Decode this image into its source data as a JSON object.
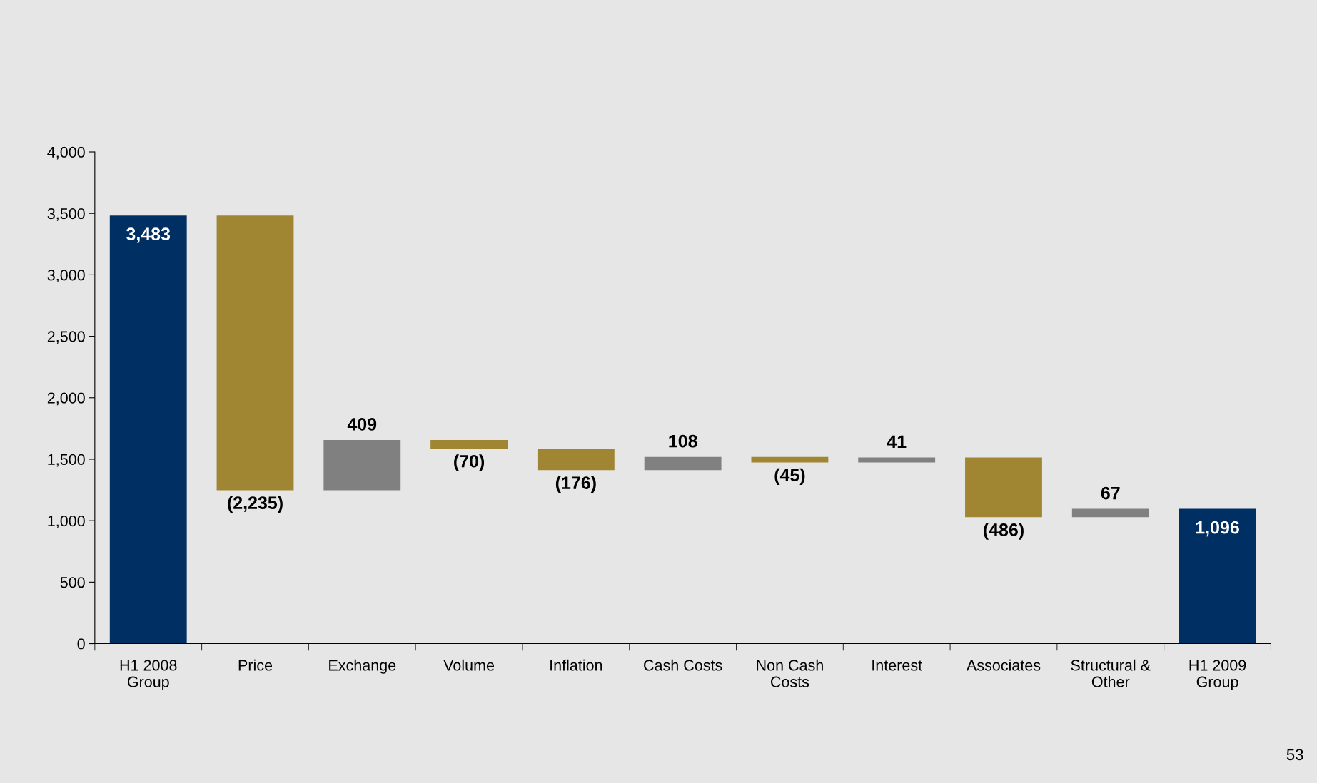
{
  "chart_data": {
    "type": "bar",
    "categories": [
      "H1 2008\nGroup",
      "Price",
      "Exchange",
      "Volume",
      "Inflation",
      "Cash Costs",
      "Non Cash\nCosts",
      "Interest",
      "Associates",
      "Structural &\nOther",
      "H1 2009\nGroup"
    ],
    "values": [
      3483,
      -2235,
      409,
      -70,
      -176,
      108,
      -45,
      41,
      -486,
      67,
      1096
    ],
    "base": [
      0,
      3483,
      1248,
      1657,
      1587,
      1411,
      1519,
      1474,
      1515,
      1029,
      0
    ],
    "colors": [
      "#003063",
      "#a08533",
      "#808080",
      "#a08533",
      "#a08533",
      "#808080",
      "#a08533",
      "#808080",
      "#a08533",
      "#808080",
      "#003063"
    ],
    "value_labels": [
      "3,483",
      "(2,235)",
      "409",
      "(70)",
      "(176)",
      "108",
      "(45)",
      "41",
      "(486)",
      "67",
      "1,096"
    ],
    "ylim": [
      0,
      4000
    ],
    "yticks": [
      0,
      500,
      {
        "value": 1000,
        "label": "1,000"
      },
      {
        "value": 1500,
        "label": "1,500"
      },
      {
        "value": 2000,
        "label": "2,000"
      },
      {
        "value": 2500,
        "label": "2,500"
      },
      {
        "value": 3000,
        "label": "3,000"
      },
      {
        "value": 3500,
        "label": "3,500"
      },
      {
        "value": 4000,
        "label": "4,000"
      }
    ],
    "grid": false,
    "annotations": [
      "53"
    ]
  }
}
